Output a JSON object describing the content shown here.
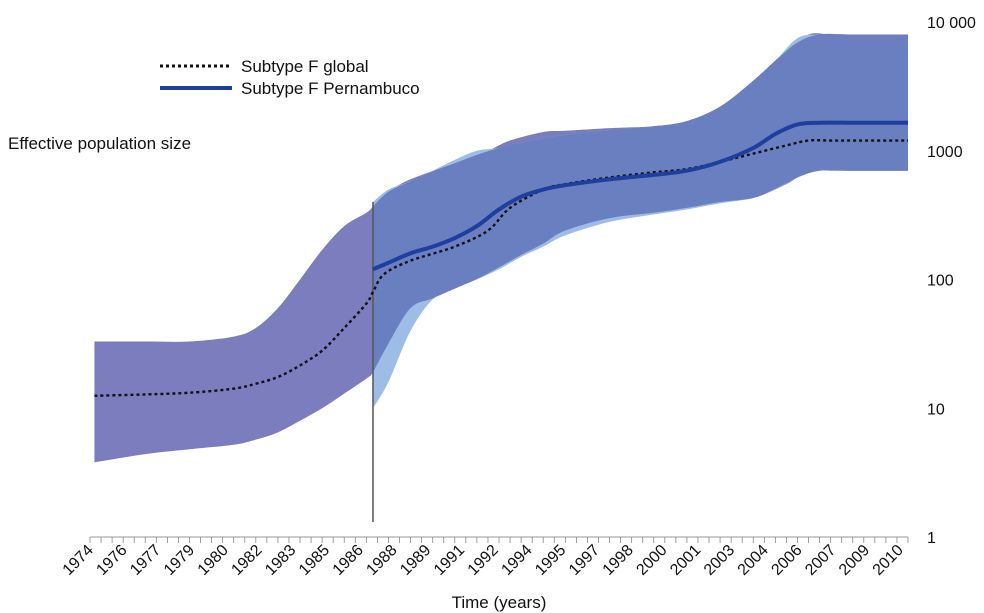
{
  "chart_data": {
    "type": "area",
    "title": "",
    "ylabel": "Effective population size",
    "xlabel": "Time (years)",
    "yscale": "log",
    "ylim": [
      1,
      10000
    ],
    "xlim": [
      1973.5,
      2010.5
    ],
    "yticks": [
      {
        "value": 1,
        "label": "1"
      },
      {
        "value": 10,
        "label": "10"
      },
      {
        "value": 100,
        "label": "100"
      },
      {
        "value": 1000,
        "label": "1000"
      },
      {
        "value": 10000,
        "label": "10 000"
      }
    ],
    "xtick_labels": [
      "1974",
      "1976",
      "1977",
      "1979",
      "1980",
      "1982",
      "1983",
      "1985",
      "1986",
      "1988",
      "1989",
      "1991",
      "1992",
      "1994",
      "1995",
      "1997",
      "1998",
      "2000",
      "2001",
      "2003",
      "2004",
      "2006",
      "2007",
      "2009",
      "2010"
    ],
    "grid": false,
    "legend_position": "top-left",
    "vertical_line_x": 1986.3,
    "colors": {
      "global_band": "#7b7dbf",
      "pernambuco_band": "#9dbde6",
      "pernambuco_line": "#1f3f9e",
      "global_line": "#111111",
      "overlap_band": "#6a7fc0"
    },
    "series": [
      {
        "name": "Subtype F global",
        "style": "dotted",
        "x": [
          1973.7,
          1976,
          1978,
          1980,
          1981,
          1982,
          1983,
          1984,
          1985,
          1986,
          1986.3,
          1986.8,
          1988,
          1990,
          1991.5,
          1992.5,
          1994,
          1995,
          1997,
          1999,
          2000.5,
          2002,
          2003.5,
          2005,
          2006,
          2007,
          2008,
          2010.5
        ],
        "median": [
          12.5,
          12.8,
          13.2,
          14.2,
          15.5,
          17.5,
          21.5,
          28,
          42,
          65,
          80,
          110,
          140,
          180,
          240,
          360,
          500,
          550,
          620,
          680,
          720,
          820,
          950,
          1100,
          1200,
          1200,
          1200,
          1200
        ],
        "lower": [
          3.8,
          4.4,
          4.8,
          5.2,
          5.7,
          6.5,
          8,
          10,
          13,
          17,
          19,
          28,
          60,
          85,
          110,
          140,
          190,
          240,
          300,
          330,
          360,
          400,
          430,
          550,
          700,
          700,
          700,
          700
        ],
        "upper": [
          33,
          33,
          33,
          36,
          42,
          60,
          100,
          170,
          260,
          330,
          370,
          460,
          600,
          800,
          1000,
          1200,
          1400,
          1430,
          1500,
          1550,
          1700,
          2200,
          3500,
          6000,
          8000,
          8000,
          8000,
          8000
        ]
      },
      {
        "name": "Subtype F Pernambuco",
        "style": "solid",
        "x": [
          1986.3,
          1987,
          1988,
          1989,
          1990,
          1991,
          1992,
          1993,
          1994,
          1995,
          1997,
          1999,
          2000.5,
          2002,
          2003.5,
          2004.5,
          2005.5,
          2006.5,
          2008,
          2010.5
        ],
        "median": [
          120,
          135,
          160,
          180,
          210,
          260,
          350,
          440,
          500,
          540,
          600,
          650,
          700,
          820,
          1050,
          1350,
          1600,
          1650,
          1650,
          1650
        ],
        "lower": [
          10,
          16,
          40,
          70,
          85,
          100,
          120,
          150,
          180,
          220,
          280,
          320,
          350,
          390,
          430,
          500,
          620,
          700,
          700,
          700
        ],
        "upper": [
          400,
          500,
          580,
          700,
          850,
          1000,
          1050,
          1150,
          1250,
          1330,
          1450,
          1550,
          1700,
          2200,
          3500,
          5000,
          7500,
          8000,
          8000,
          8000
        ]
      }
    ]
  }
}
